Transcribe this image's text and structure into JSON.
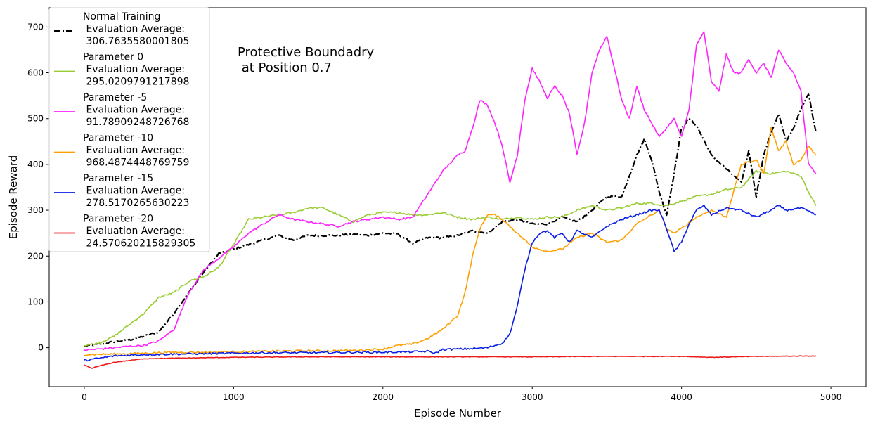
{
  "chart_data": {
    "type": "line",
    "title": "",
    "annotation": [
      "Protective Boundadry",
      " at Position 0.7"
    ],
    "xlabel": "Episode Number",
    "ylabel": "Episode Reward",
    "xlim": [
      -235,
      5235
    ],
    "ylim": [
      -85,
      742
    ],
    "xticks": [
      0,
      1000,
      2000,
      3000,
      4000,
      5000
    ],
    "yticks": [
      0,
      100,
      200,
      300,
      400,
      500,
      600,
      700
    ],
    "grid": false,
    "legend_position": "top-left",
    "series": [
      {
        "name": "Normal Training",
        "legend_lines": [
          "Normal Training",
          " Evaluation Average:",
          " 306.7635580001805"
        ],
        "color": "#000000",
        "dash": "dashdot",
        "x": [
          0,
          100,
          200,
          300,
          400,
          500,
          600,
          700,
          800,
          900,
          1000,
          1100,
          1200,
          1300,
          1400,
          1500,
          1600,
          1700,
          1800,
          1900,
          2000,
          2100,
          2200,
          2300,
          2400,
          2500,
          2600,
          2700,
          2800,
          2900,
          3000,
          3100,
          3200,
          3300,
          3400,
          3500,
          3600,
          3700,
          3750,
          3800,
          3850,
          3900,
          3950,
          4000,
          4050,
          4100,
          4200,
          4300,
          4400,
          4450,
          4500,
          4550,
          4600,
          4650,
          4700,
          4750,
          4800,
          4850,
          4900
        ],
        "values": [
          3,
          8,
          13,
          17,
          25,
          35,
          75,
          120,
          165,
          205,
          215,
          225,
          235,
          245,
          235,
          245,
          245,
          245,
          248,
          245,
          250,
          248,
          228,
          240,
          240,
          245,
          255,
          250,
          275,
          280,
          270,
          270,
          285,
          275,
          300,
          330,
          330,
          420,
          455,
          410,
          340,
          290,
          380,
          480,
          500,
          485,
          420,
          390,
          360,
          430,
          330,
          420,
          470,
          510,
          450,
          480,
          520,
          555,
          470
        ]
      },
      {
        "name": "Parameter 0",
        "legend_lines": [
          "Parameter 0",
          " Evaluation Average:",
          " 295.0209791217898"
        ],
        "color": "#99cc33",
        "dash": "solid",
        "x": [
          0,
          100,
          200,
          300,
          400,
          500,
          600,
          700,
          800,
          900,
          1000,
          1100,
          1200,
          1300,
          1400,
          1500,
          1600,
          1700,
          1800,
          1900,
          2000,
          2100,
          2200,
          2300,
          2400,
          2500,
          2600,
          2700,
          2800,
          2900,
          3000,
          3100,
          3200,
          3300,
          3400,
          3500,
          3600,
          3700,
          3800,
          3900,
          4000,
          4100,
          4200,
          4300,
          4400,
          4500,
          4600,
          4700,
          4800,
          4850,
          4900
        ],
        "values": [
          5,
          10,
          25,
          50,
          75,
          110,
          120,
          145,
          155,
          175,
          225,
          280,
          285,
          290,
          295,
          305,
          305,
          290,
          275,
          290,
          295,
          295,
          290,
          290,
          295,
          285,
          280,
          285,
          280,
          285,
          280,
          285,
          285,
          300,
          310,
          300,
          305,
          315,
          315,
          310,
          320,
          330,
          335,
          345,
          350,
          385,
          380,
          385,
          375,
          340,
          310
        ]
      },
      {
        "name": "Parameter -5",
        "legend_lines": [
          "Parameter -5",
          " Evaluation Average:",
          " 91.78909248726768"
        ],
        "color": "#ff22ff",
        "dash": "solid",
        "x": [
          0,
          100,
          200,
          300,
          400,
          500,
          600,
          700,
          800,
          900,
          1000,
          1100,
          1200,
          1300,
          1400,
          1500,
          1600,
          1700,
          1800,
          1900,
          2000,
          2100,
          2200,
          2300,
          2400,
          2500,
          2550,
          2600,
          2650,
          2700,
          2750,
          2800,
          2850,
          2900,
          2950,
          3000,
          3050,
          3100,
          3150,
          3200,
          3250,
          3300,
          3350,
          3400,
          3450,
          3500,
          3550,
          3600,
          3650,
          3700,
          3750,
          3800,
          3850,
          3900,
          3950,
          4000,
          4050,
          4100,
          4150,
          4200,
          4250,
          4300,
          4350,
          4400,
          4450,
          4500,
          4550,
          4600,
          4650,
          4700,
          4750,
          4800,
          4850,
          4900
        ],
        "values": [
          -5,
          -3,
          0,
          3,
          5,
          15,
          40,
          120,
          170,
          195,
          220,
          250,
          270,
          290,
          280,
          275,
          270,
          265,
          275,
          280,
          285,
          280,
          285,
          335,
          385,
          420,
          430,
          480,
          540,
          530,
          490,
          440,
          360,
          420,
          540,
          610,
          580,
          545,
          570,
          550,
          510,
          420,
          490,
          600,
          650,
          680,
          610,
          540,
          500,
          570,
          520,
          490,
          460,
          480,
          500,
          460,
          520,
          660,
          690,
          580,
          560,
          640,
          600,
          600,
          630,
          600,
          620,
          590,
          650,
          620,
          600,
          560,
          400,
          380
        ]
      },
      {
        "name": "Parameter -10",
        "legend_lines": [
          "Parameter -10",
          " Evaluation Average:",
          " 968.4874448769759"
        ],
        "color": "#ffa000",
        "dash": "solid",
        "x": [
          0,
          200,
          400,
          600,
          800,
          1000,
          1200,
          1400,
          1600,
          1800,
          2000,
          2100,
          2200,
          2300,
          2400,
          2500,
          2550,
          2600,
          2650,
          2700,
          2750,
          2800,
          2850,
          2900,
          3000,
          3100,
          3200,
          3300,
          3400,
          3500,
          3600,
          3700,
          3800,
          3850,
          3900,
          3950,
          4000,
          4100,
          4200,
          4300,
          4400,
          4500,
          4550,
          4600,
          4650,
          4700,
          4750,
          4800,
          4850,
          4900
        ],
        "values": [
          -15,
          -14,
          -12,
          -10,
          -10,
          -9,
          -8,
          -7,
          -7,
          -6,
          -3,
          5,
          8,
          20,
          40,
          70,
          120,
          200,
          260,
          290,
          290,
          280,
          265,
          250,
          220,
          210,
          215,
          240,
          250,
          230,
          235,
          270,
          290,
          300,
          260,
          250,
          260,
          285,
          300,
          285,
          400,
          410,
          380,
          480,
          430,
          450,
          400,
          410,
          440,
          420
        ]
      },
      {
        "name": "Parameter -15",
        "legend_lines": [
          "Parameter -15",
          " Evaluation Average:",
          " 278.5170265630223"
        ],
        "color": "#0a1ee6",
        "dash": "solid",
        "x": [
          0,
          200,
          400,
          600,
          800,
          1000,
          1200,
          1400,
          1600,
          1800,
          2000,
          2200,
          2300,
          2350,
          2400,
          2500,
          2600,
          2700,
          2800,
          2850,
          2900,
          2950,
          3000,
          3050,
          3100,
          3150,
          3200,
          3250,
          3300,
          3400,
          3500,
          3600,
          3700,
          3800,
          3850,
          3900,
          3950,
          4000,
          4050,
          4100,
          4150,
          4200,
          4300,
          4400,
          4500,
          4600,
          4650,
          4700,
          4800,
          4900
        ],
        "values": [
          -28,
          -18,
          -15,
          -14,
          -13,
          -12,
          -11,
          -11,
          -11,
          -10,
          -10,
          -9,
          -8,
          -12,
          -4,
          -3,
          -2,
          0,
          10,
          30,
          90,
          170,
          230,
          250,
          255,
          240,
          250,
          230,
          255,
          240,
          265,
          280,
          290,
          300,
          300,
          260,
          210,
          230,
          270,
          300,
          310,
          290,
          305,
          300,
          285,
          300,
          310,
          300,
          305,
          290
        ]
      },
      {
        "name": "Parameter -20",
        "legend_lines": [
          "Parameter -20",
          " Evaluation Average:",
          " 24.570620215829305"
        ],
        "color": "#ee1a1a",
        "dash": "solid",
        "x": [
          0,
          50,
          100,
          200,
          300,
          400,
          600,
          800,
          1000,
          1500,
          2000,
          2500,
          3000,
          3500,
          4000,
          4200,
          4500,
          4900
        ],
        "values": [
          -38,
          -45,
          -40,
          -32,
          -28,
          -24,
          -23,
          -22,
          -21,
          -20,
          -20,
          -20,
          -20,
          -19,
          -19,
          -21,
          -19,
          -18
        ]
      }
    ]
  }
}
